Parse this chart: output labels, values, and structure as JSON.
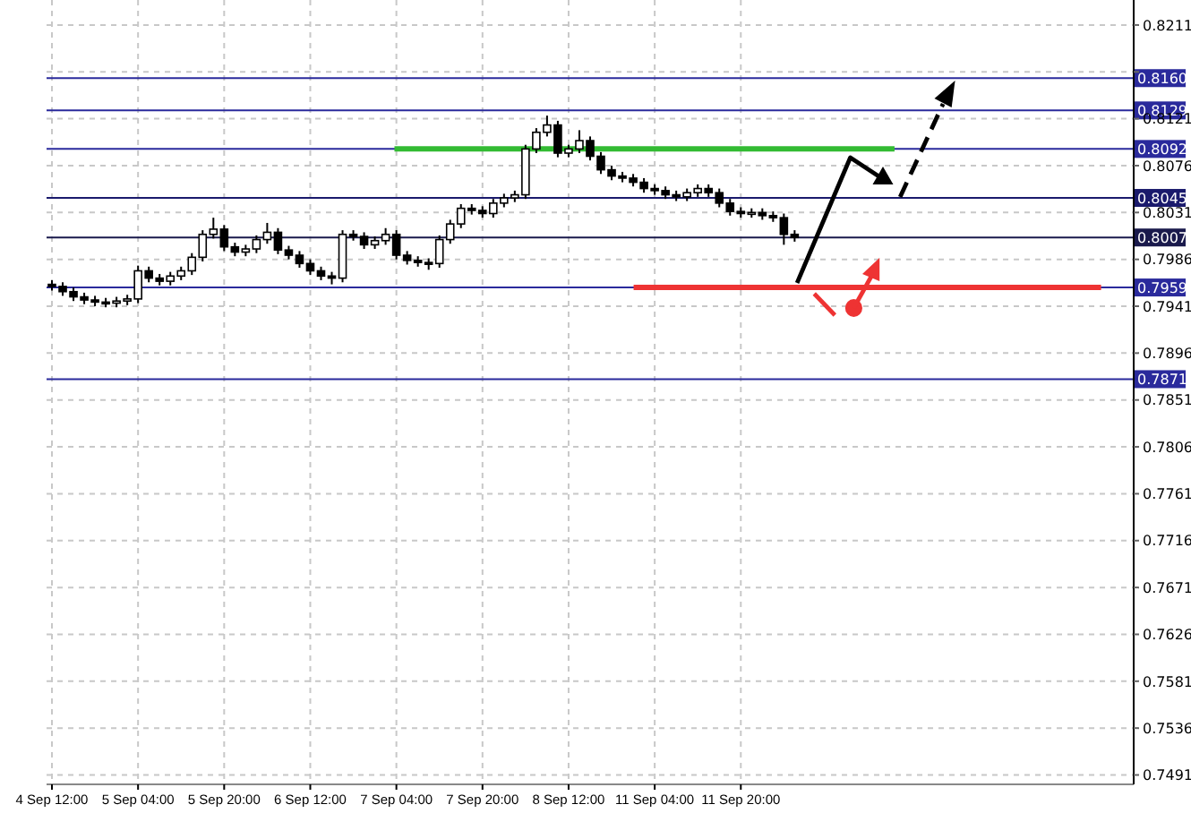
{
  "chart_data": {
    "type": "candlestick",
    "categories": [
      "4 Sep 12:00",
      null,
      null,
      null,
      null,
      null,
      null,
      null,
      "5 Sep 04:00",
      null,
      null,
      null,
      null,
      null,
      null,
      null,
      "5 Sep 20:00",
      null,
      null,
      null,
      null,
      null,
      null,
      null,
      "6 Sep 12:00",
      null,
      null,
      null,
      null,
      null,
      null,
      null,
      "7 Sep 04:00",
      null,
      null,
      null,
      null,
      null,
      null,
      null,
      "7 Sep 20:00",
      null,
      null,
      null,
      null,
      null,
      null,
      null,
      "8 Sep 12:00",
      null,
      null,
      null,
      null,
      null,
      null,
      null,
      "11 Sep 04:00",
      null,
      null,
      null,
      null,
      null,
      null,
      null,
      "11 Sep 20:00",
      null,
      null,
      null,
      null,
      null,
      null,
      null,
      null,
      null,
      null,
      null,
      null,
      null,
      null,
      null,
      null,
      null,
      null,
      null,
      null,
      null,
      null,
      null,
      null,
      null,
      null,
      null,
      null,
      null,
      null,
      null,
      null,
      null,
      null,
      null,
      null
    ],
    "ohlc": [
      [
        0.7962,
        0.7966,
        0.7956,
        0.796
      ],
      [
        0.796,
        0.7964,
        0.7951,
        0.7955
      ],
      [
        0.7955,
        0.7959,
        0.7946,
        0.795
      ],
      [
        0.795,
        0.7954,
        0.7943,
        0.7947
      ],
      [
        0.7947,
        0.7951,
        0.7941,
        0.7945
      ],
      [
        0.7945,
        0.7949,
        0.794,
        0.7944
      ],
      [
        0.7944,
        0.795,
        0.794,
        0.7946
      ],
      [
        0.7946,
        0.7952,
        0.7942,
        0.7948
      ],
      [
        0.7948,
        0.798,
        0.7944,
        0.7975
      ],
      [
        0.7975,
        0.7979,
        0.7964,
        0.7968
      ],
      [
        0.7968,
        0.7972,
        0.7961,
        0.7965
      ],
      [
        0.7965,
        0.7974,
        0.7961,
        0.797
      ],
      [
        0.797,
        0.7979,
        0.7966,
        0.7975
      ],
      [
        0.7975,
        0.7992,
        0.7971,
        0.7988
      ],
      [
        0.7988,
        0.8014,
        0.7984,
        0.801
      ],
      [
        0.801,
        0.8026,
        0.8006,
        0.8015
      ],
      [
        0.8015,
        0.8019,
        0.7994,
        0.7998
      ],
      [
        0.7998,
        0.8002,
        0.7989,
        0.7993
      ],
      [
        0.7993,
        0.8,
        0.7989,
        0.7996
      ],
      [
        0.7996,
        0.8009,
        0.7992,
        0.8005
      ],
      [
        0.8005,
        0.8021,
        0.8001,
        0.8012
      ],
      [
        0.8012,
        0.8016,
        0.7991,
        0.7995
      ],
      [
        0.7995,
        0.7999,
        0.7986,
        0.799
      ],
      [
        0.799,
        0.7994,
        0.7978,
        0.7982
      ],
      [
        0.7982,
        0.7986,
        0.7971,
        0.7975
      ],
      [
        0.7975,
        0.7979,
        0.7966,
        0.797
      ],
      [
        0.797,
        0.7974,
        0.7962,
        0.7968
      ],
      [
        0.7968,
        0.8014,
        0.7964,
        0.801
      ],
      [
        0.801,
        0.8014,
        0.8004,
        0.8008
      ],
      [
        0.8008,
        0.8012,
        0.7996,
        0.8
      ],
      [
        0.8,
        0.8008,
        0.7996,
        0.8004
      ],
      [
        0.8004,
        0.8016,
        0.8,
        0.801
      ],
      [
        0.801,
        0.8014,
        0.7986,
        0.799
      ],
      [
        0.799,
        0.7994,
        0.7981,
        0.7985
      ],
      [
        0.7985,
        0.7989,
        0.7979,
        0.7983
      ],
      [
        0.7983,
        0.7987,
        0.7976,
        0.7982
      ],
      [
        0.7982,
        0.8009,
        0.7978,
        0.8005
      ],
      [
        0.8005,
        0.8024,
        0.8001,
        0.802
      ],
      [
        0.802,
        0.8039,
        0.8016,
        0.8035
      ],
      [
        0.8035,
        0.8039,
        0.8029,
        0.8033
      ],
      [
        0.8033,
        0.8037,
        0.8026,
        0.803
      ],
      [
        0.803,
        0.8044,
        0.8026,
        0.804
      ],
      [
        0.804,
        0.8049,
        0.8036,
        0.8045
      ],
      [
        0.8045,
        0.8052,
        0.8041,
        0.8048
      ],
      [
        0.8048,
        0.8096,
        0.8044,
        0.8092
      ],
      [
        0.8092,
        0.8112,
        0.8088,
        0.8108
      ],
      [
        0.8108,
        0.8124,
        0.8104,
        0.8115
      ],
      [
        0.8115,
        0.8119,
        0.8084,
        0.8088
      ],
      [
        0.8088,
        0.8096,
        0.8084,
        0.8092
      ],
      [
        0.8092,
        0.811,
        0.8088,
        0.81
      ],
      [
        0.81,
        0.8104,
        0.8081,
        0.8085
      ],
      [
        0.8085,
        0.8089,
        0.8068,
        0.8072
      ],
      [
        0.8072,
        0.8076,
        0.8062,
        0.8066
      ],
      [
        0.8066,
        0.807,
        0.806,
        0.8064
      ],
      [
        0.8064,
        0.8068,
        0.8056,
        0.806
      ],
      [
        0.806,
        0.8064,
        0.805,
        0.8054
      ],
      [
        0.8054,
        0.8058,
        0.8048,
        0.8052
      ],
      [
        0.8052,
        0.8056,
        0.8044,
        0.8048
      ],
      [
        0.8048,
        0.8052,
        0.8042,
        0.8046
      ],
      [
        0.8046,
        0.8054,
        0.8042,
        0.805
      ],
      [
        0.805,
        0.8058,
        0.8046,
        0.8054
      ],
      [
        0.8054,
        0.8058,
        0.8046,
        0.805
      ],
      [
        0.805,
        0.8054,
        0.8036,
        0.804
      ],
      [
        0.804,
        0.8044,
        0.8028,
        0.8032
      ],
      [
        0.8032,
        0.8036,
        0.8026,
        0.803
      ],
      [
        0.803,
        0.8035,
        0.8026,
        0.8031
      ],
      [
        0.8031,
        0.8035,
        0.8024,
        0.8028
      ],
      [
        0.8028,
        0.8032,
        0.8022,
        0.8026
      ],
      [
        0.8026,
        0.803,
        0.8,
        0.801
      ],
      [
        0.801,
        0.8014,
        0.8003,
        0.8007
      ],
      null,
      null,
      null,
      null,
      null,
      null,
      null,
      null,
      null,
      null,
      null,
      null,
      null,
      null,
      null,
      null,
      null,
      null,
      null,
      null,
      null,
      null,
      null,
      null,
      null,
      null,
      null,
      null,
      null,
      null,
      null
    ],
    "ylim": [
      0.7482,
      0.8235
    ],
    "yticks": [
      0.7491,
      0.7536,
      0.7581,
      0.7626,
      0.7671,
      0.7716,
      0.7761,
      0.7806,
      0.7851,
      0.7896,
      0.7941,
      0.7986,
      0.8031,
      0.8076,
      0.8121,
      {
        "value": 0.8166,
        "label": null
      },
      0.8211
    ],
    "grid": true,
    "ref_lines": [
      {
        "axis": "y",
        "value": 0.816,
        "label": "0.8160",
        "color": "#2a2a9c"
      },
      {
        "axis": "y",
        "value": 0.8129,
        "label": "0.8129",
        "color": "#2a2a9c"
      },
      {
        "axis": "y",
        "value": 0.8092,
        "label": "0.8092",
        "color": "#2a2a9c"
      },
      {
        "axis": "y",
        "value": 0.8045,
        "label": "0.8045",
        "color": "#1a1a6c"
      },
      {
        "axis": "y",
        "value": 0.8007,
        "label": "0.8007",
        "color": "#1a1a4c"
      },
      {
        "axis": "y",
        "value": 0.7959,
        "label": "0.7959",
        "color": "#2a2a9c"
      },
      {
        "axis": "y",
        "value": 0.7871,
        "label": "0.7871",
        "color": "#2a2a9c"
      },
      {
        "axis": "y",
        "value": 0.8092,
        "color": "#33bb33"
      },
      {
        "axis": "y",
        "value": 0.7959,
        "color": "#ee3333"
      }
    ]
  }
}
